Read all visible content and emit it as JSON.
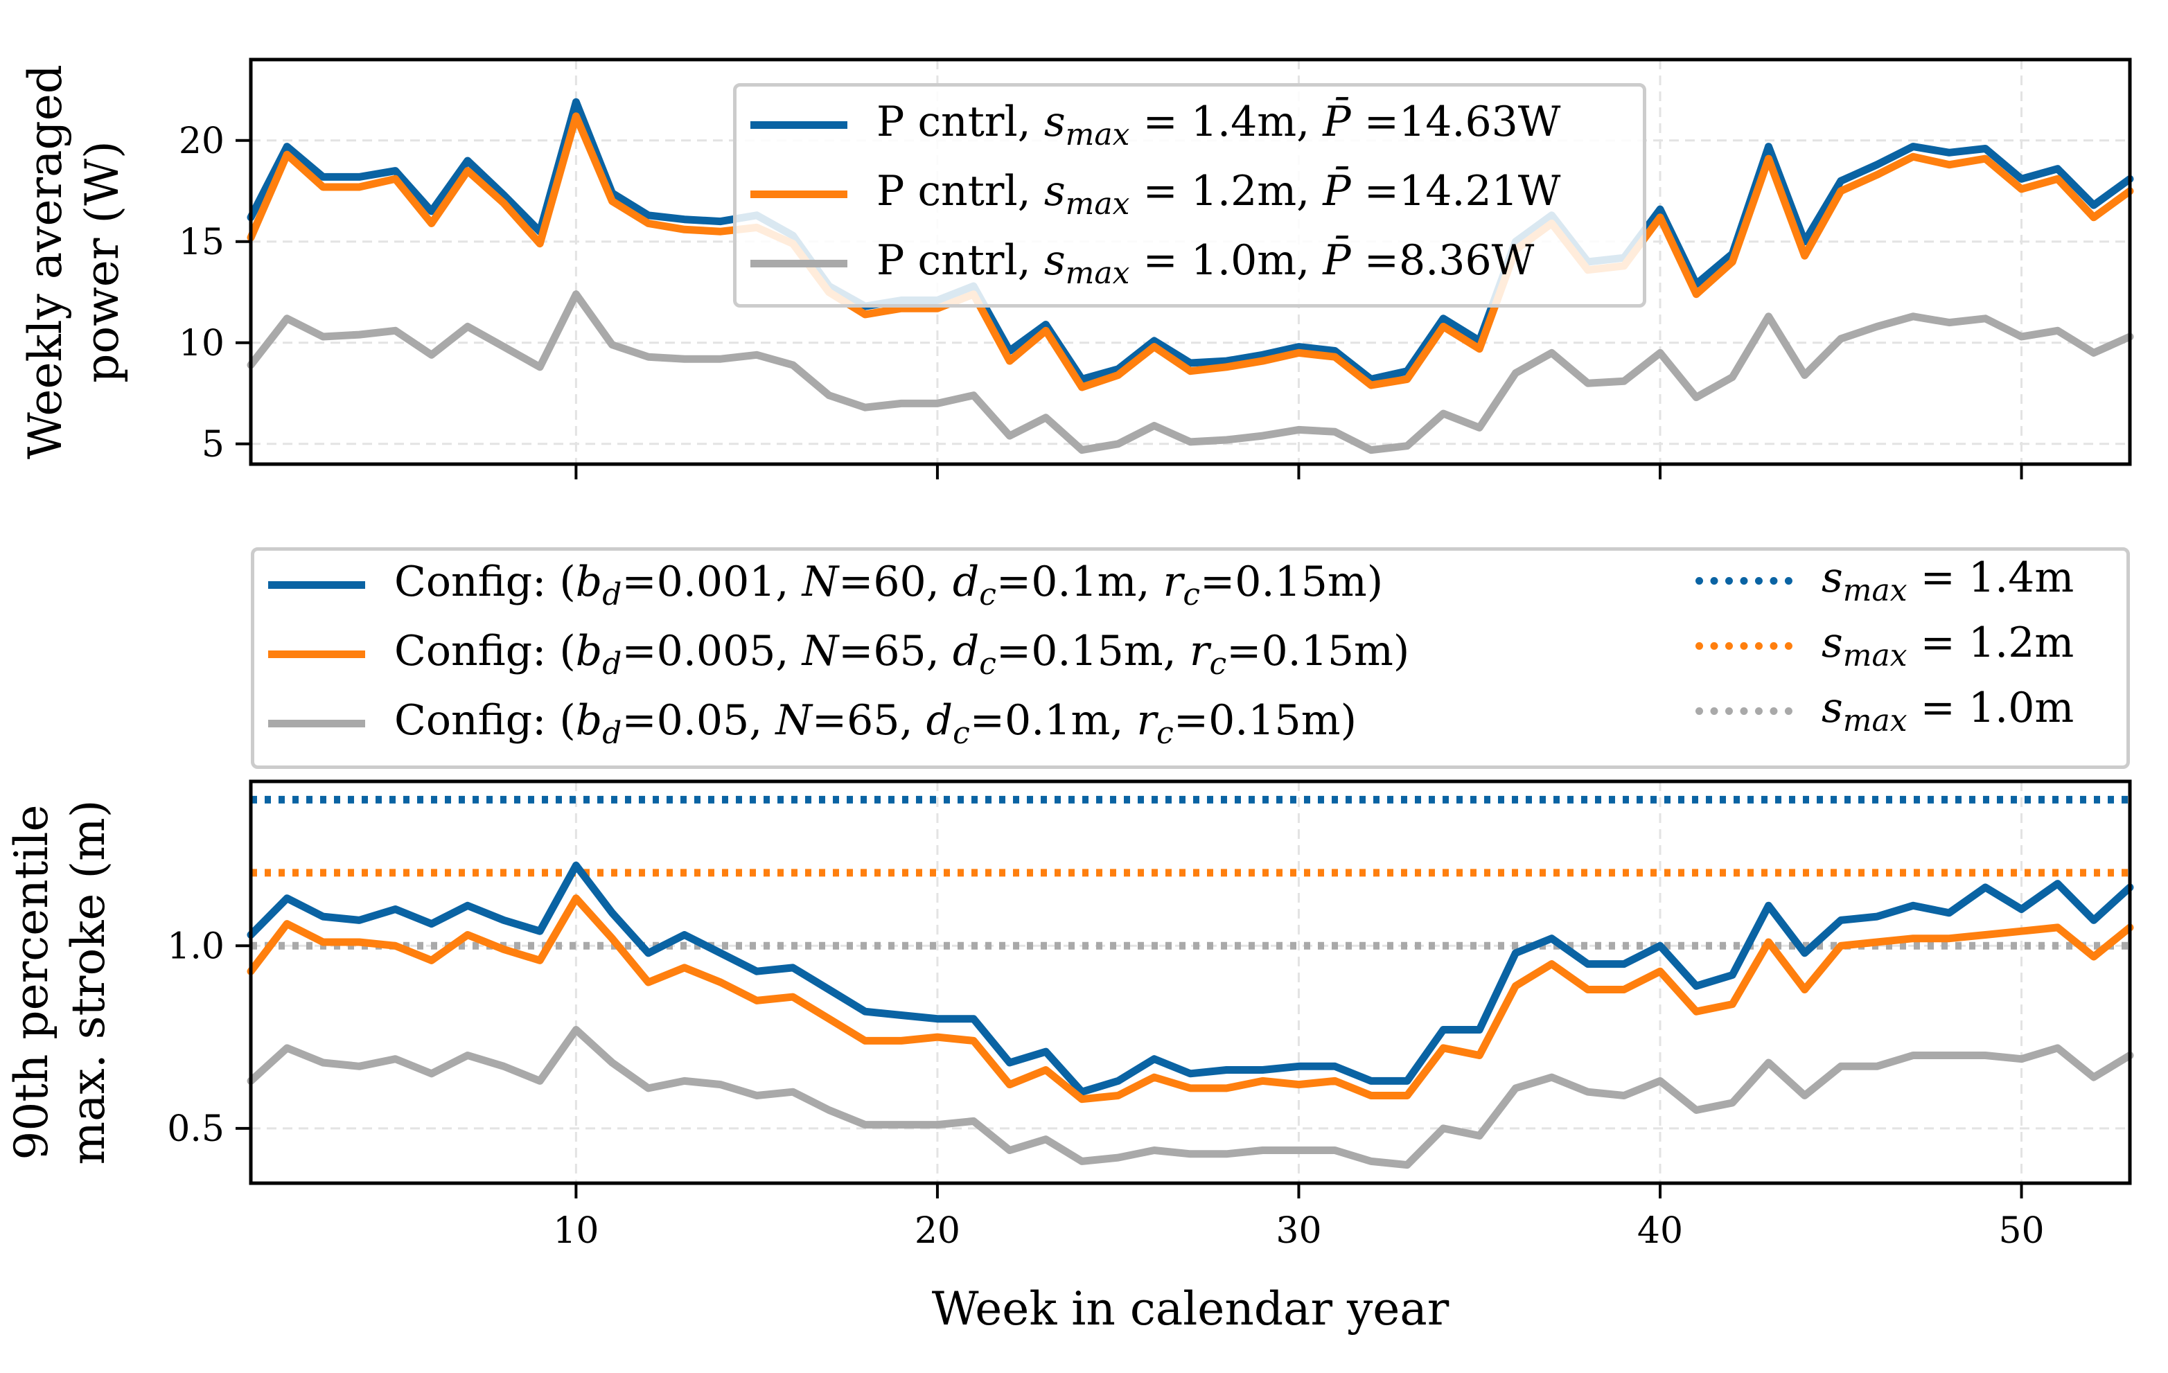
{
  "chart_data": [
    {
      "type": "line",
      "ylabel": [
        "Weekly averaged",
        "power (W)"
      ],
      "xlim": [
        1,
        53
      ],
      "ylim": [
        4,
        24
      ],
      "yticks": [
        5,
        10,
        15,
        20
      ],
      "grid": true,
      "legend_position": "top-center",
      "x": [
        1,
        2,
        3,
        4,
        5,
        6,
        7,
        8,
        9,
        10,
        11,
        12,
        13,
        14,
        15,
        16,
        17,
        18,
        19,
        20,
        21,
        22,
        23,
        24,
        25,
        26,
        27,
        28,
        29,
        30,
        31,
        32,
        33,
        34,
        35,
        36,
        37,
        38,
        39,
        40,
        41,
        42,
        43,
        44,
        45,
        46,
        47,
        48,
        49,
        50,
        51,
        52,
        53
      ],
      "series": [
        {
          "name": "P cntrl, s_max = 1.4m, P̄ =14.63W",
          "label_parts": [
            "P cntrl, ",
            "s",
            "max",
            " = 1.4m, ",
            "P̄",
            " =14.63W"
          ],
          "color": "#0a63a3",
          "style": "solid",
          "values": [
            16.2,
            19.7,
            18.2,
            18.2,
            18.5,
            16.5,
            19.0,
            17.3,
            15.5,
            21.9,
            17.4,
            16.3,
            16.1,
            16.0,
            16.3,
            15.3,
            12.8,
            11.8,
            12.1,
            12.1,
            12.8,
            9.6,
            10.9,
            8.2,
            8.7,
            10.1,
            9.0,
            9.1,
            9.4,
            9.8,
            9.6,
            8.2,
            8.6,
            11.2,
            10.1,
            15.0,
            16.3,
            14.0,
            14.2,
            16.6,
            12.9,
            14.4,
            19.7,
            15.0,
            18.0,
            18.8,
            19.7,
            19.4,
            19.6,
            18.1,
            18.6,
            16.8,
            18.1
          ]
        },
        {
          "name": "P cntrl, s_max = 1.2m, P̄ =14.21W",
          "label_parts": [
            "P cntrl, ",
            "s",
            "max",
            " = 1.2m, ",
            "P̄",
            " =14.21W"
          ],
          "color": "#ff7f0e",
          "style": "solid",
          "values": [
            15.2,
            19.3,
            17.7,
            17.7,
            18.1,
            15.9,
            18.5,
            16.9,
            14.9,
            21.2,
            17.0,
            15.9,
            15.6,
            15.5,
            15.7,
            14.9,
            12.5,
            11.4,
            11.7,
            11.7,
            12.4,
            9.1,
            10.6,
            7.8,
            8.4,
            9.8,
            8.6,
            8.8,
            9.1,
            9.5,
            9.3,
            7.9,
            8.2,
            10.8,
            9.7,
            14.6,
            15.9,
            13.6,
            13.8,
            16.2,
            12.4,
            14.0,
            19.1,
            14.3,
            17.5,
            18.3,
            19.2,
            18.8,
            19.1,
            17.6,
            18.1,
            16.2,
            17.5
          ]
        },
        {
          "name": "P cntrl, s_max = 1.0m, P̄ =8.36W",
          "label_parts": [
            "P cntrl, ",
            "s",
            "max",
            " = 1.0m, ",
            "P̄",
            " =8.36W"
          ],
          "color": "#a9a9a9",
          "style": "solid",
          "values": [
            8.9,
            11.2,
            10.3,
            10.4,
            10.6,
            9.4,
            10.8,
            9.8,
            8.8,
            12.4,
            9.9,
            9.3,
            9.2,
            9.2,
            9.4,
            8.9,
            7.4,
            6.8,
            7.0,
            7.0,
            7.4,
            5.4,
            6.3,
            4.7,
            5.0,
            5.9,
            5.1,
            5.2,
            5.4,
            5.7,
            5.6,
            4.7,
            4.9,
            6.5,
            5.8,
            8.5,
            9.5,
            8.0,
            8.1,
            9.5,
            7.3,
            8.3,
            11.3,
            8.4,
            10.2,
            10.8,
            11.3,
            11.0,
            11.2,
            10.3,
            10.6,
            9.5,
            10.3
          ]
        }
      ]
    },
    {
      "type": "line",
      "xlabel": "Week in calendar year",
      "ylabel": [
        "90th percentile",
        "max. stroke (m)"
      ],
      "xlim": [
        1,
        53
      ],
      "xticks": [
        10,
        20,
        30,
        40,
        50
      ],
      "ylim": [
        0.35,
        1.45
      ],
      "yticks": [
        0.5,
        1.0
      ],
      "grid": true,
      "legend_position": "above plot",
      "x": [
        1,
        2,
        3,
        4,
        5,
        6,
        7,
        8,
        9,
        10,
        11,
        12,
        13,
        14,
        15,
        16,
        17,
        18,
        19,
        20,
        21,
        22,
        23,
        24,
        25,
        26,
        27,
        28,
        29,
        30,
        31,
        32,
        33,
        34,
        35,
        36,
        37,
        38,
        39,
        40,
        41,
        42,
        43,
        44,
        45,
        46,
        47,
        48,
        49,
        50,
        51,
        52,
        53
      ],
      "series": [
        {
          "name": "Config: (b_d=0.001, N=60, d_c=0.1m, r_c=0.15m)",
          "label_parts": [
            "Config: (",
            "b",
            "d",
            "=0.001, ",
            "N",
            "=60, ",
            "d",
            "c",
            "=0.1m, ",
            "r",
            "c",
            "=0.15m)"
          ],
          "color": "#0a63a3",
          "style": "solid",
          "values": [
            1.03,
            1.13,
            1.08,
            1.07,
            1.1,
            1.06,
            1.11,
            1.07,
            1.04,
            1.22,
            1.09,
            0.98,
            1.03,
            0.98,
            0.93,
            0.94,
            0.88,
            0.82,
            0.81,
            0.8,
            0.8,
            0.68,
            0.71,
            0.6,
            0.63,
            0.69,
            0.65,
            0.66,
            0.66,
            0.67,
            0.67,
            0.63,
            0.63,
            0.77,
            0.77,
            0.98,
            1.02,
            0.95,
            0.95,
            1.0,
            0.89,
            0.92,
            1.11,
            0.98,
            1.07,
            1.08,
            1.11,
            1.09,
            1.16,
            1.1,
            1.17,
            1.07,
            1.16
          ]
        },
        {
          "name": "Config: (b_d=0.005, N=65, d_c=0.15m, r_c=0.15m)",
          "label_parts": [
            "Config: (",
            "b",
            "d",
            "=0.005, ",
            "N",
            "=65, ",
            "d",
            "c",
            "=0.15m, ",
            "r",
            "c",
            "=0.15m)"
          ],
          "color": "#ff7f0e",
          "style": "solid",
          "values": [
            0.93,
            1.06,
            1.01,
            1.01,
            1.0,
            0.96,
            1.03,
            0.99,
            0.96,
            1.13,
            1.02,
            0.9,
            0.94,
            0.9,
            0.85,
            0.86,
            0.8,
            0.74,
            0.74,
            0.75,
            0.74,
            0.62,
            0.66,
            0.58,
            0.59,
            0.64,
            0.61,
            0.61,
            0.63,
            0.62,
            0.63,
            0.59,
            0.59,
            0.72,
            0.7,
            0.89,
            0.95,
            0.88,
            0.88,
            0.93,
            0.82,
            0.84,
            1.01,
            0.88,
            1.0,
            1.01,
            1.02,
            1.02,
            1.03,
            1.04,
            1.05,
            0.97,
            1.05
          ]
        },
        {
          "name": "Config: (b_d=0.05, N=65, d_c=0.1m, r_c=0.15m)",
          "label_parts": [
            "Config: (",
            "b",
            "d",
            "=0.05, ",
            "N",
            "=65, ",
            "d",
            "c",
            "=0.1m, ",
            "r",
            "c",
            "=0.15m)"
          ],
          "color": "#a9a9a9",
          "style": "solid",
          "values": [
            0.63,
            0.72,
            0.68,
            0.67,
            0.69,
            0.65,
            0.7,
            0.67,
            0.63,
            0.77,
            0.68,
            0.61,
            0.63,
            0.62,
            0.59,
            0.6,
            0.55,
            0.51,
            0.51,
            0.51,
            0.52,
            0.44,
            0.47,
            0.41,
            0.42,
            0.44,
            0.43,
            0.43,
            0.44,
            0.44,
            0.44,
            0.41,
            0.4,
            0.5,
            0.48,
            0.61,
            0.64,
            0.6,
            0.59,
            0.63,
            0.55,
            0.57,
            0.68,
            0.59,
            0.67,
            0.67,
            0.7,
            0.7,
            0.7,
            0.69,
            0.72,
            0.64,
            0.7
          ]
        }
      ],
      "reference_lines": [
        {
          "name": "s_max = 1.4m",
          "label_parts": [
            "s",
            "max",
            " = 1.4m"
          ],
          "value": 1.4,
          "color": "#0a63a3",
          "style": "dotted"
        },
        {
          "name": "s_max = 1.2m",
          "label_parts": [
            "s",
            "max",
            " = 1.2m"
          ],
          "value": 1.2,
          "color": "#ff7f0e",
          "style": "dotted"
        },
        {
          "name": "s_max = 1.0m",
          "label_parts": [
            "s",
            "max",
            " = 1.0m"
          ],
          "value": 1.0,
          "color": "#a9a9a9",
          "style": "dotted"
        }
      ]
    }
  ]
}
